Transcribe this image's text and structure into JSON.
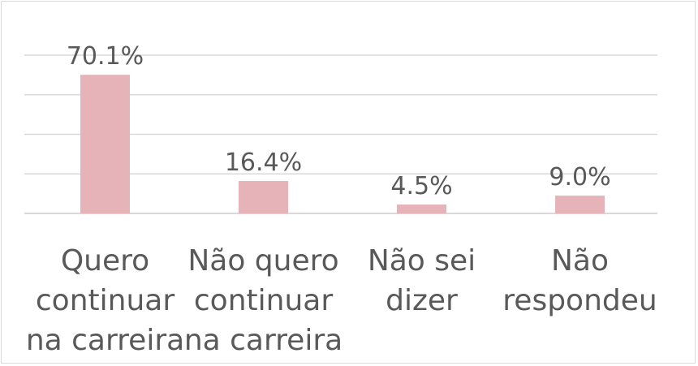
{
  "chart_data": {
    "type": "bar",
    "categories": [
      [
        "Quero",
        "continuar",
        "na carreira"
      ],
      [
        "Não quero",
        "continuar",
        "na carreira"
      ],
      [
        "Não sei",
        "dizer"
      ],
      [
        "Não",
        "respondeu"
      ]
    ],
    "values": [
      70.1,
      16.4,
      4.5,
      9.0
    ],
    "data_labels": [
      "70.1%",
      "16.4%",
      "4.5%",
      "9.0%"
    ],
    "ylim": [
      0,
      80
    ],
    "grid": true,
    "bar_color": "#e6b4b8",
    "grid_color": "#d9d9d9",
    "text_color": "#595959"
  }
}
